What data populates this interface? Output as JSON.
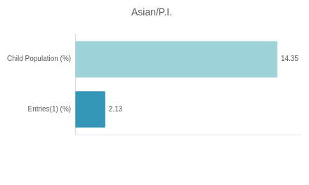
{
  "chart_data": {
    "type": "bar",
    "title": "Asian/P.I.",
    "orientation": "horizontal",
    "categories": [
      "Child Population (%)",
      "Entries(1) (%)"
    ],
    "values": [
      14.35,
      2.13
    ],
    "colors": [
      "#9dd3d9",
      "#3497b8"
    ],
    "xlim": [
      0,
      16
    ],
    "data_labels": true,
    "tick_labels": "y",
    "grid": false
  }
}
